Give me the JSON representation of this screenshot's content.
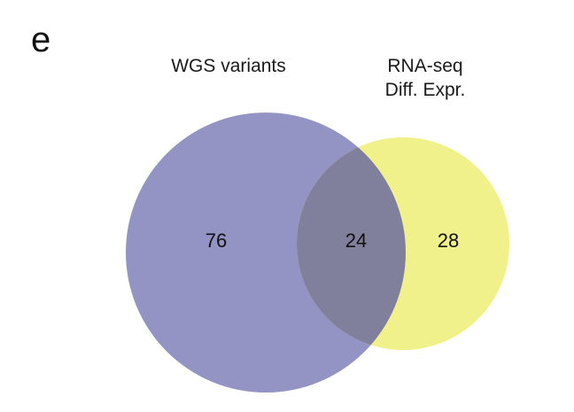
{
  "panel_label": "e",
  "sets": [
    {
      "name_lines": [
        "WGS variants"
      ],
      "color": "#9394c3"
    },
    {
      "name_lines": [
        "RNA-seq",
        "Diff. Expr."
      ],
      "color": "#f1f18b"
    }
  ],
  "overlap_color": "#80809c",
  "counts": {
    "only_a": "76",
    "overlap": "24",
    "only_b": "28"
  }
}
